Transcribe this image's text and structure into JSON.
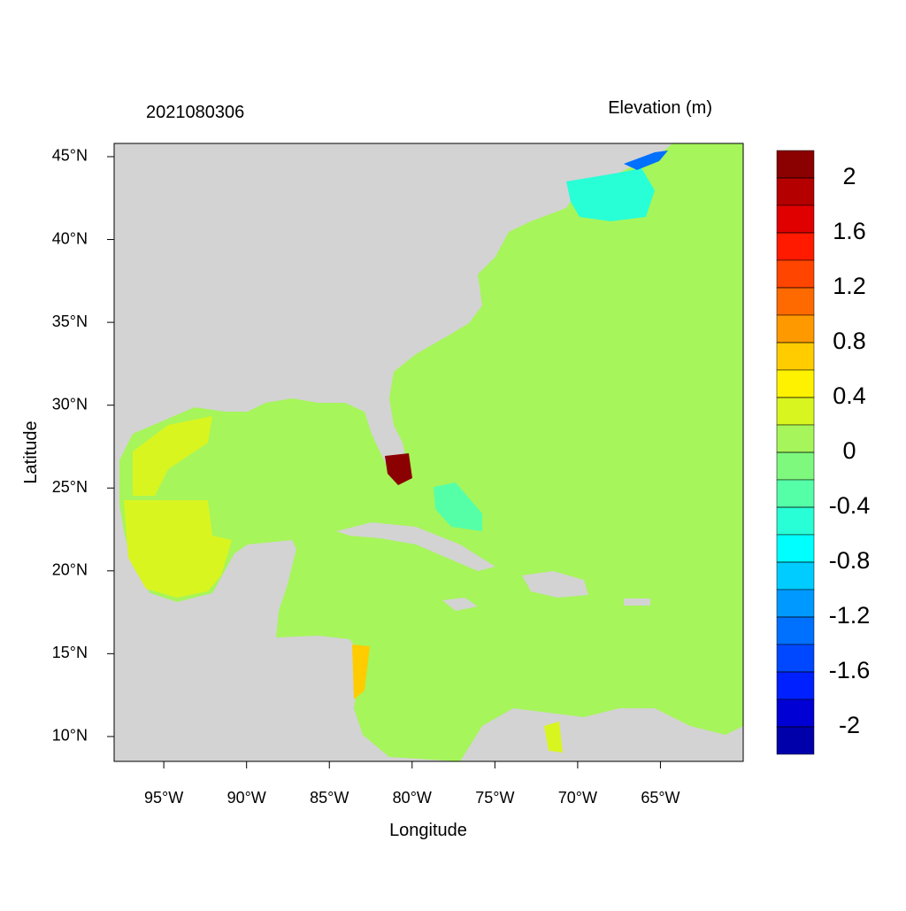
{
  "header": {
    "title": "2021080306",
    "variable": "Elevation (m)"
  },
  "map": {
    "xlabel": "Longitude",
    "ylabel": "Latitude",
    "xlim": [
      -98,
      -60
    ],
    "ylim": [
      8.5,
      45.8
    ],
    "xticks": [
      {
        "value": -95,
        "label": "95°W"
      },
      {
        "value": -90,
        "label": "90°W"
      },
      {
        "value": -85,
        "label": "85°W"
      },
      {
        "value": -80,
        "label": "80°W"
      },
      {
        "value": -75,
        "label": "75°W"
      },
      {
        "value": -70,
        "label": "70°W"
      },
      {
        "value": -65,
        "label": "65°W"
      }
    ],
    "yticks": [
      {
        "value": 10,
        "label": "10°N"
      },
      {
        "value": 15,
        "label": "15°N"
      },
      {
        "value": 20,
        "label": "20°N"
      },
      {
        "value": 25,
        "label": "25°N"
      },
      {
        "value": 30,
        "label": "30°N"
      },
      {
        "value": 35,
        "label": "35°N"
      },
      {
        "value": 40,
        "label": "40°N"
      },
      {
        "value": 45,
        "label": "45°N"
      }
    ]
  },
  "colorbar": {
    "range": [
      -2.2,
      2.2
    ],
    "ticks": [
      2,
      1.6,
      1.2,
      0.8,
      0.4,
      0,
      -0.4,
      -0.8,
      -1.2,
      -1.6,
      -2
    ],
    "colors": [
      "#8b0000",
      "#b50000",
      "#e00000",
      "#ff1a00",
      "#ff4500",
      "#ff6a00",
      "#ff9900",
      "#ffcc00",
      "#fff200",
      "#d9f520",
      "#a6f55a",
      "#7ef97e",
      "#55ffa8",
      "#28ffd6",
      "#00ffff",
      "#00ccff",
      "#0099ff",
      "#0070ff",
      "#0048ff",
      "#0020ff",
      "#0000d4",
      "#0000aa"
    ]
  }
}
